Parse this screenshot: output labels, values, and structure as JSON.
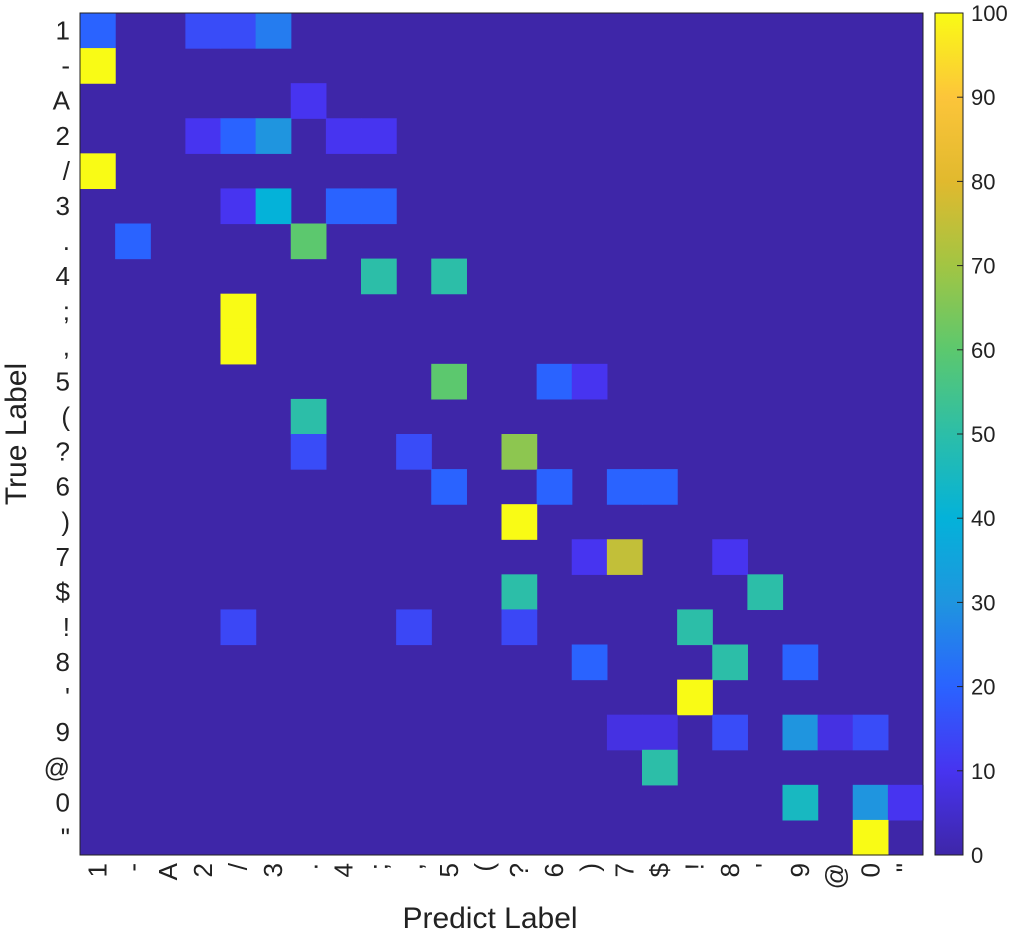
{
  "chart_data": {
    "type": "heatmap",
    "xlabel": "Predict Label",
    "ylabel": "True Label",
    "categories": [
      "1",
      "-",
      "A",
      "2",
      "/",
      "3",
      ".",
      "4",
      ";",
      ",",
      "5",
      "(",
      "?",
      "6",
      ")",
      "7",
      "$",
      "!",
      "8",
      "'",
      "9",
      "@",
      "0",
      "\""
    ],
    "x_tick_labels": [
      "1",
      "-",
      "A",
      "2",
      "/",
      "3",
      ".",
      "4",
      ";",
      ",",
      "5",
      "(",
      "?",
      "6",
      ")",
      "7",
      "$",
      "!",
      "8",
      "'",
      "9",
      "@",
      "0",
      "\""
    ],
    "y_tick_labels": [
      "1",
      "-",
      "A",
      "2",
      "/",
      "3",
      ".",
      "4",
      ";",
      ",",
      "5",
      "(",
      "?",
      "6",
      ")",
      "7",
      "$",
      "!",
      "8",
      "'",
      "9",
      "@",
      "0",
      "\""
    ],
    "colorbar": {
      "min": 0,
      "max": 100,
      "ticks": [
        0,
        10,
        20,
        30,
        40,
        50,
        60,
        70,
        80,
        90,
        100
      ]
    },
    "colors": {
      "low": "#3e26a8",
      "high": "#f9fb15"
    },
    "cells": [
      {
        "row": 0,
        "col": 0,
        "value": 20
      },
      {
        "row": 0,
        "col": 3,
        "value": 15
      },
      {
        "row": 0,
        "col": 4,
        "value": 15
      },
      {
        "row": 0,
        "col": 5,
        "value": 25
      },
      {
        "row": 1,
        "col": 0,
        "value": 100
      },
      {
        "row": 2,
        "col": 6,
        "value": 10
      },
      {
        "row": 3,
        "col": 3,
        "value": 10
      },
      {
        "row": 3,
        "col": 4,
        "value": 20
      },
      {
        "row": 3,
        "col": 5,
        "value": 30
      },
      {
        "row": 3,
        "col": 7,
        "value": 10
      },
      {
        "row": 3,
        "col": 8,
        "value": 10
      },
      {
        "row": 4,
        "col": 0,
        "value": 100
      },
      {
        "row": 5,
        "col": 4,
        "value": 10
      },
      {
        "row": 5,
        "col": 5,
        "value": 40
      },
      {
        "row": 5,
        "col": 7,
        "value": 20
      },
      {
        "row": 5,
        "col": 8,
        "value": 20
      },
      {
        "row": 6,
        "col": 1,
        "value": 20
      },
      {
        "row": 6,
        "col": 6,
        "value": 60
      },
      {
        "row": 7,
        "col": 8,
        "value": 50
      },
      {
        "row": 7,
        "col": 10,
        "value": 50
      },
      {
        "row": 8,
        "col": 4,
        "value": 100
      },
      {
        "row": 9,
        "col": 4,
        "value": 100
      },
      {
        "row": 10,
        "col": 10,
        "value": 60
      },
      {
        "row": 10,
        "col": 13,
        "value": 20
      },
      {
        "row": 10,
        "col": 14,
        "value": 10
      },
      {
        "row": 11,
        "col": 6,
        "value": 50
      },
      {
        "row": 12,
        "col": 6,
        "value": 15
      },
      {
        "row": 12,
        "col": 9,
        "value": 15
      },
      {
        "row": 12,
        "col": 12,
        "value": 67
      },
      {
        "row": 13,
        "col": 10,
        "value": 20
      },
      {
        "row": 13,
        "col": 13,
        "value": 20
      },
      {
        "row": 13,
        "col": 15,
        "value": 20
      },
      {
        "row": 13,
        "col": 16,
        "value": 20
      },
      {
        "row": 14,
        "col": 12,
        "value": 100
      },
      {
        "row": 15,
        "col": 14,
        "value": 10
      },
      {
        "row": 15,
        "col": 15,
        "value": 75
      },
      {
        "row": 15,
        "col": 18,
        "value": 10
      },
      {
        "row": 16,
        "col": 12,
        "value": 50
      },
      {
        "row": 16,
        "col": 19,
        "value": 50
      },
      {
        "row": 17,
        "col": 4,
        "value": 14
      },
      {
        "row": 17,
        "col": 9,
        "value": 14
      },
      {
        "row": 17,
        "col": 12,
        "value": 14
      },
      {
        "row": 17,
        "col": 17,
        "value": 50
      },
      {
        "row": 18,
        "col": 14,
        "value": 20
      },
      {
        "row": 18,
        "col": 18,
        "value": 50
      },
      {
        "row": 18,
        "col": 20,
        "value": 20
      },
      {
        "row": 19,
        "col": 17,
        "value": 100
      },
      {
        "row": 20,
        "col": 15,
        "value": 8
      },
      {
        "row": 20,
        "col": 16,
        "value": 8
      },
      {
        "row": 20,
        "col": 18,
        "value": 15
      },
      {
        "row": 20,
        "col": 20,
        "value": 30
      },
      {
        "row": 20,
        "col": 21,
        "value": 8
      },
      {
        "row": 20,
        "col": 22,
        "value": 15
      },
      {
        "row": 21,
        "col": 16,
        "value": 50
      },
      {
        "row": 22,
        "col": 20,
        "value": 45
      },
      {
        "row": 22,
        "col": 22,
        "value": 30
      },
      {
        "row": 22,
        "col": 23,
        "value": 10
      },
      {
        "row": 23,
        "col": 22,
        "value": 100
      }
    ]
  }
}
